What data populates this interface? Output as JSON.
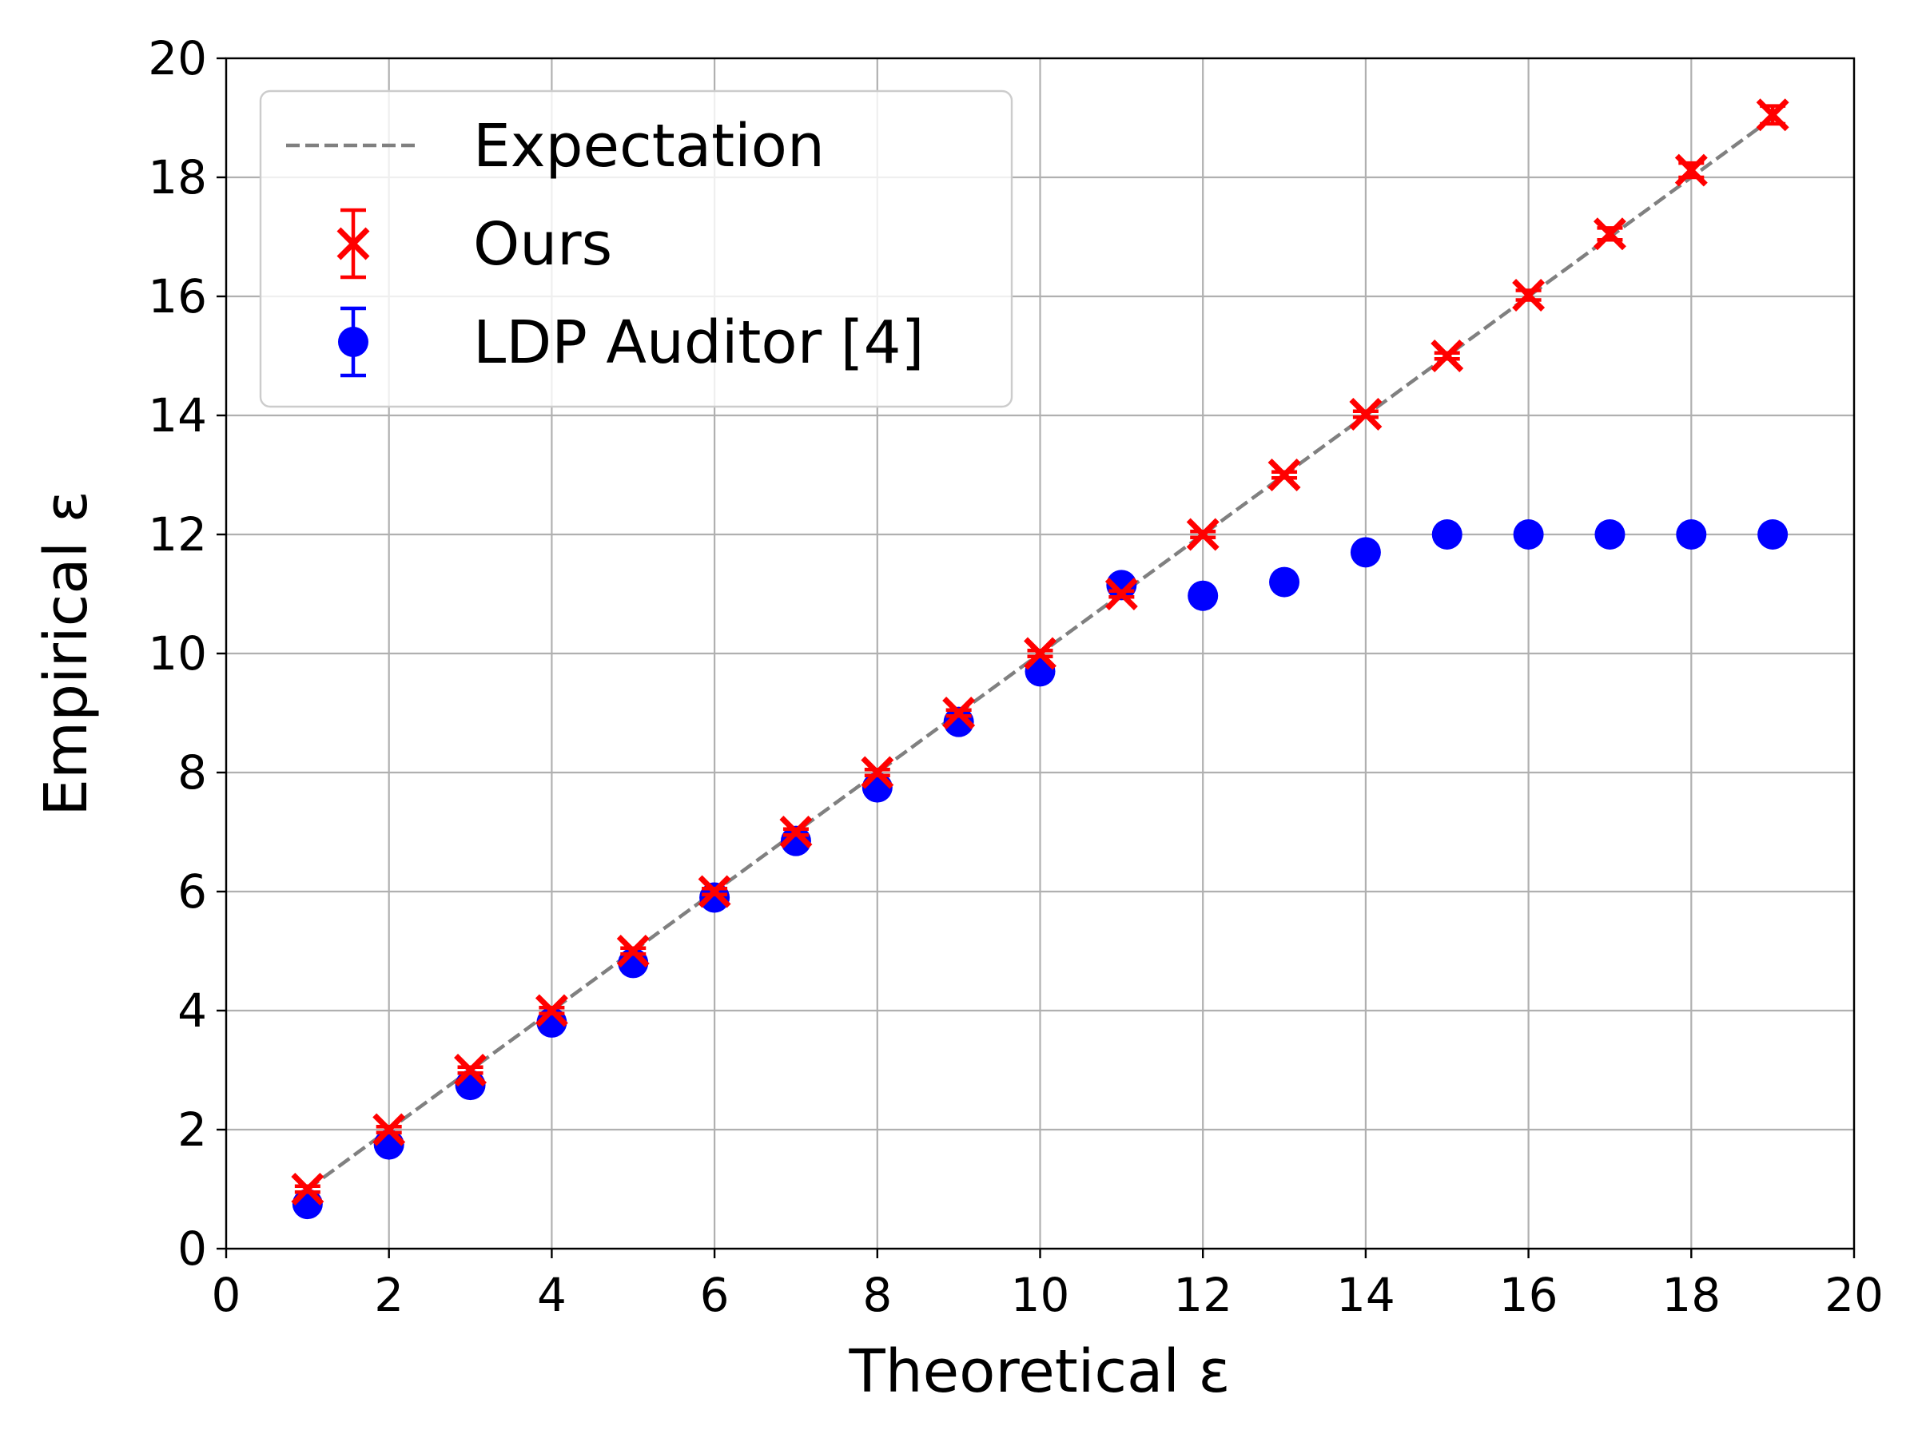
{
  "chart_data": {
    "type": "scatter",
    "xlabel": "Theoretical ε",
    "ylabel": "Empirical ε",
    "xlim": [
      0,
      20
    ],
    "ylim": [
      0,
      20
    ],
    "xticks": [
      "0",
      "2",
      "4",
      "6",
      "8",
      "10",
      "12",
      "14",
      "16",
      "18",
      "20"
    ],
    "yticks": [
      "0",
      "2",
      "4",
      "6",
      "8",
      "10",
      "12",
      "14",
      "16",
      "18",
      "20"
    ],
    "grid": true,
    "legend_position": "upper-left",
    "series": [
      {
        "name": "Expectation",
        "kind": "dashed-line",
        "color": "#808080",
        "x": [
          1,
          19
        ],
        "y": [
          1,
          19
        ]
      },
      {
        "name": "Ours",
        "kind": "x-marker-errorbar",
        "color": "#ff0000",
        "x": [
          1,
          2,
          3,
          4,
          5,
          6,
          7,
          8,
          9,
          10,
          11,
          12,
          13,
          14,
          15,
          16,
          17,
          18,
          19
        ],
        "y": [
          1.0,
          2.0,
          3.0,
          4.0,
          5.0,
          6.0,
          7.0,
          8.0,
          9.0,
          10.0,
          11.0,
          12.0,
          13.0,
          14.02,
          15.0,
          16.02,
          17.05,
          18.12,
          19.05
        ],
        "err": [
          0.05,
          0.05,
          0.05,
          0.05,
          0.05,
          0.05,
          0.05,
          0.05,
          0.05,
          0.05,
          0.05,
          0.05,
          0.05,
          0.05,
          0.05,
          0.08,
          0.1,
          0.12,
          0.15
        ]
      },
      {
        "name": "LDP Auditor [4]",
        "kind": "circle-marker-errorbar",
        "color": "#0000ff",
        "x": [
          1,
          2,
          3,
          4,
          5,
          6,
          7,
          8,
          9,
          10,
          11,
          12,
          13,
          14,
          15,
          16,
          17,
          18,
          19
        ],
        "y": [
          0.75,
          1.75,
          2.75,
          3.8,
          4.8,
          5.9,
          6.85,
          7.75,
          8.85,
          9.7,
          11.15,
          10.97,
          11.2,
          11.7,
          12.0,
          12.0,
          12.0,
          12.0,
          12.0
        ]
      }
    ]
  }
}
